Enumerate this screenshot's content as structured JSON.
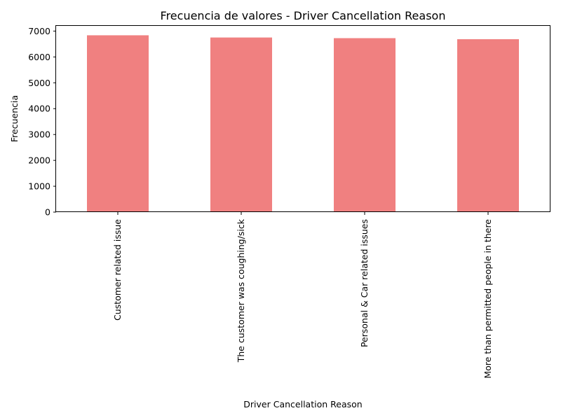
{
  "chart_data": {
    "type": "bar",
    "title": "Frecuencia de valores - Driver Cancellation Reason",
    "xlabel": "Driver Cancellation Reason",
    "ylabel": "Frecuencia",
    "categories": [
      "Customer related issue",
      "The customer was coughing/sick",
      "Personal & Car related issues",
      "More than permitted people in there"
    ],
    "values": [
      6837,
      6751,
      6726,
      6686
    ],
    "ylim": [
      0,
      7200
    ],
    "yticks": [
      0,
      1000,
      2000,
      3000,
      4000,
      5000,
      6000,
      7000
    ],
    "bar_color": "#f08080",
    "grid": false,
    "legend": false
  }
}
